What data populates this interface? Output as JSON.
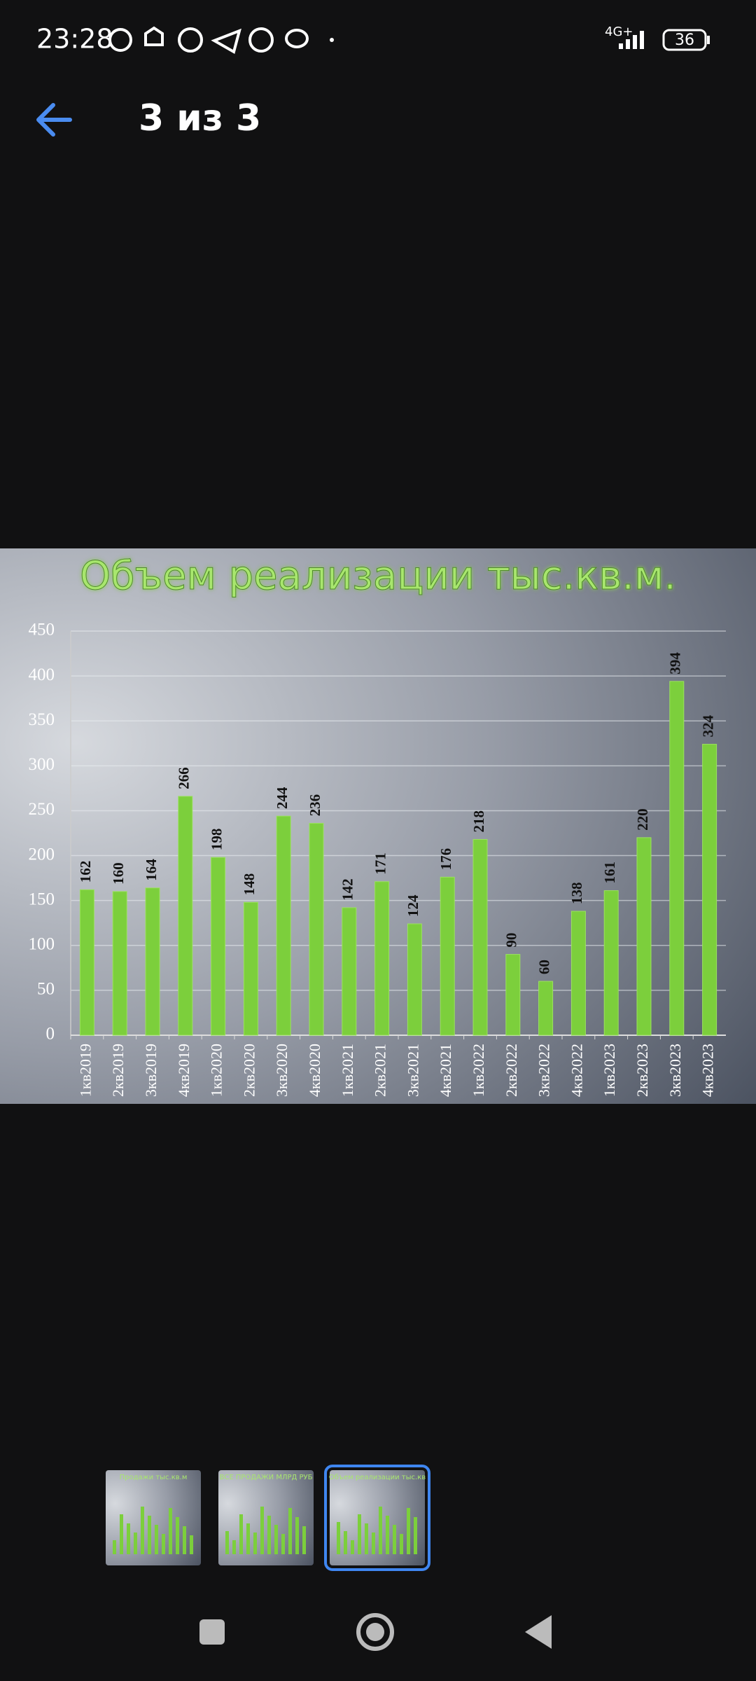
{
  "status_bar": {
    "time": "23:28",
    "network": "4G+",
    "battery": "36"
  },
  "header": {
    "title": "3 из 3"
  },
  "chart_data": {
    "type": "bar",
    "title": "Объем реализации тыс.кв.м.",
    "categories": [
      "1кв2019",
      "2кв2019",
      "3кв2019",
      "4кв2019",
      "1кв2020",
      "2кв2020",
      "3кв2020",
      "4кв2020",
      "1кв2021",
      "2кв2021",
      "3кв2021",
      "4кв2021",
      "1кв2022",
      "2кв2022",
      "3кв2022",
      "4кв2022",
      "1кв2023",
      "2кв2023",
      "3кв2023",
      "4кв2023"
    ],
    "values": [
      162,
      160,
      164,
      266,
      198,
      148,
      244,
      236,
      142,
      171,
      124,
      176,
      218,
      90,
      60,
      138,
      161,
      220,
      394,
      324
    ],
    "color": "#7ccf3c",
    "ylim": [
      0,
      450
    ],
    "yticks": [
      0,
      50,
      100,
      150,
      200,
      250,
      300,
      350,
      400,
      450
    ],
    "grid": true
  },
  "thumbnails": [
    {
      "title": "Продажи тыс.кв.м"
    },
    {
      "title": "ВСЕ ПРОДАЖИ МЛРД РУБ"
    },
    {
      "title": "Объем реализации тыс.кв"
    }
  ]
}
